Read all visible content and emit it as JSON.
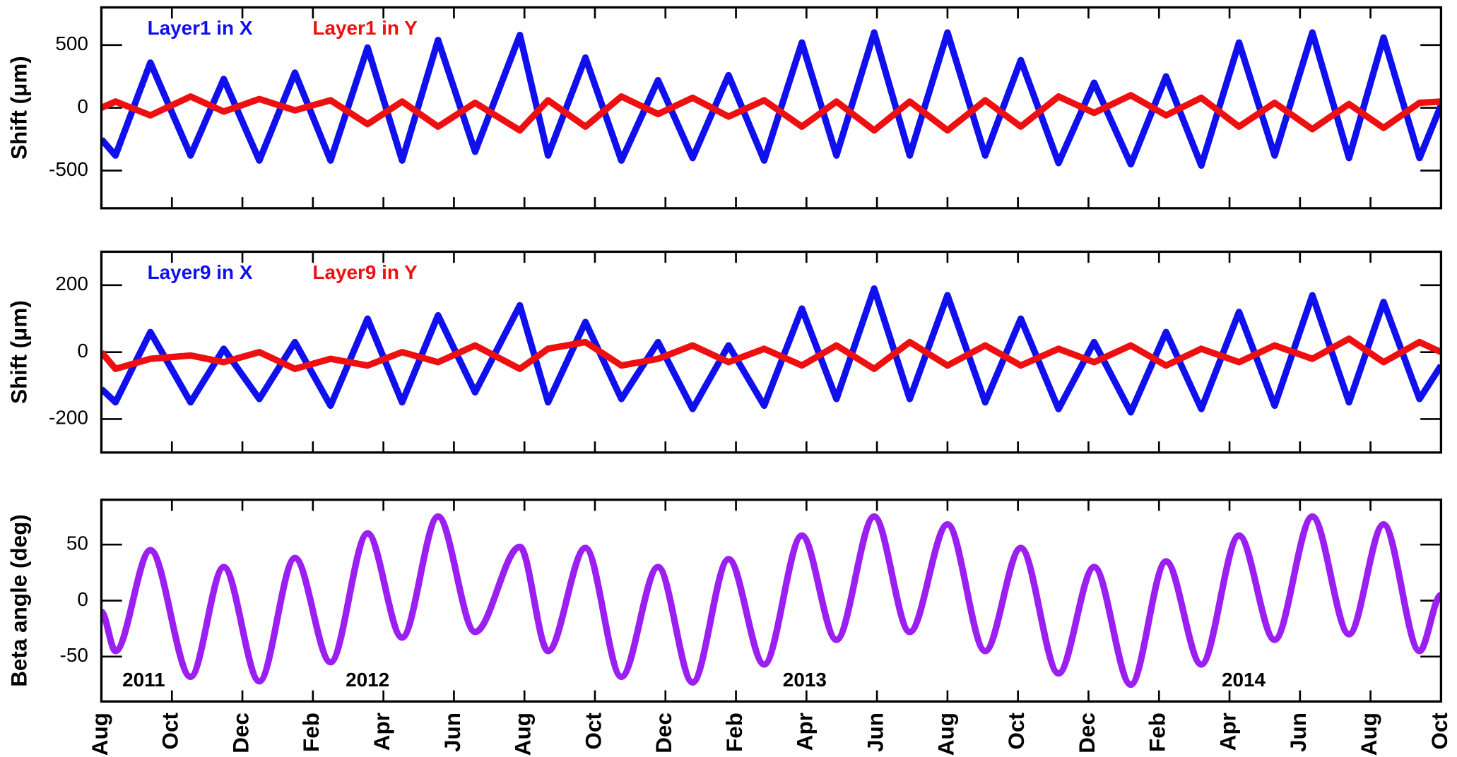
{
  "chart_data": [
    {
      "type": "line",
      "ylabel": "Shift (μm)",
      "x": [
        0,
        0.4,
        1.39,
        2.53,
        3.47,
        4.48,
        5.49,
        6.5,
        7.55,
        8.53,
        9.55,
        10.6,
        11.87,
        12.67,
        13.73,
        14.75,
        15.79,
        16.77,
        17.79,
        18.8,
        19.87,
        20.85,
        21.92,
        22.93,
        24,
        25.07,
        26.08,
        27.15,
        28.16,
        29.2,
        30.2,
        31.2,
        32.27,
        33.28,
        34.35,
        35.39,
        36.37,
        37.39,
        38
      ],
      "series": [
        {
          "name": "Layer1 in X",
          "color": "#1010ee",
          "values": [
            -250,
            -380,
            360,
            -380,
            230,
            -420,
            280,
            -420,
            480,
            -420,
            540,
            -350,
            580,
            -380,
            400,
            -420,
            220,
            -400,
            260,
            -420,
            520,
            -380,
            600,
            -380,
            600,
            -380,
            380,
            -440,
            200,
            -450,
            250,
            -460,
            520,
            -380,
            600,
            -400,
            560,
            -400,
            20
          ]
        },
        {
          "name": "Layer1 in Y",
          "color": "#ee1010",
          "values": [
            0,
            50,
            -60,
            90,
            -30,
            70,
            -20,
            60,
            -130,
            50,
            -150,
            40,
            -180,
            60,
            -150,
            90,
            -50,
            80,
            -70,
            60,
            -150,
            50,
            -180,
            50,
            -180,
            60,
            -150,
            90,
            -40,
            100,
            -60,
            80,
            -150,
            40,
            -170,
            30,
            -160,
            40,
            50
          ]
        }
      ],
      "xlim": [
        0,
        38
      ],
      "ylim": [
        -800,
        800
      ],
      "yticks": [
        -500,
        0,
        500
      ]
    },
    {
      "type": "line",
      "ylabel": "Shift (μm)",
      "x": [
        0,
        0.4,
        1.39,
        2.53,
        3.47,
        4.48,
        5.49,
        6.5,
        7.55,
        8.53,
        9.55,
        10.6,
        11.87,
        12.67,
        13.73,
        14.75,
        15.79,
        16.77,
        17.79,
        18.8,
        19.87,
        20.85,
        21.92,
        22.93,
        24,
        25.07,
        26.08,
        27.15,
        28.16,
        29.2,
        30.2,
        31.2,
        32.27,
        33.28,
        34.35,
        35.39,
        36.37,
        37.39,
        38
      ],
      "series": [
        {
          "name": "Layer9 in X",
          "color": "#1010ee",
          "values": [
            -110,
            -150,
            60,
            -150,
            10,
            -140,
            30,
            -160,
            100,
            -150,
            110,
            -120,
            140,
            -150,
            90,
            -140,
            30,
            -170,
            20,
            -160,
            130,
            -140,
            190,
            -140,
            170,
            -150,
            100,
            -170,
            30,
            -180,
            60,
            -170,
            120,
            -160,
            170,
            -150,
            150,
            -140,
            -40
          ]
        },
        {
          "name": "Layer9 in Y",
          "color": "#ee1010",
          "values": [
            0,
            -50,
            -20,
            -10,
            -30,
            0,
            -50,
            -20,
            -40,
            0,
            -30,
            20,
            -50,
            10,
            30,
            -40,
            -20,
            20,
            -30,
            10,
            -40,
            20,
            -50,
            30,
            -40,
            20,
            -40,
            10,
            -30,
            20,
            -40,
            10,
            -30,
            20,
            -20,
            40,
            -30,
            30,
            0
          ]
        }
      ],
      "xlim": [
        0,
        38
      ],
      "ylim": [
        -300,
        300
      ],
      "yticks": [
        -200,
        0,
        200
      ]
    },
    {
      "type": "line",
      "smooth": true,
      "ylabel": "Beta angle (deg)",
      "x": [
        0,
        0.4,
        1.39,
        2.53,
        3.47,
        4.48,
        5.49,
        6.5,
        7.55,
        8.53,
        9.55,
        10.6,
        11.87,
        12.67,
        13.73,
        14.75,
        15.79,
        16.77,
        17.79,
        18.8,
        19.87,
        20.85,
        21.92,
        22.93,
        24,
        25.07,
        26.08,
        27.15,
        28.16,
        29.2,
        30.2,
        31.2,
        32.27,
        33.28,
        34.35,
        35.39,
        36.37,
        37.39,
        38
      ],
      "series": [
        {
          "name": null,
          "color": "#9a1ff0",
          "values": [
            -10,
            -45,
            45,
            -68,
            30,
            -72,
            38,
            -55,
            60,
            -33,
            75,
            -28,
            48,
            -45,
            47,
            -68,
            30,
            -73,
            37,
            -57,
            58,
            -35,
            75,
            -28,
            68,
            -45,
            47,
            -65,
            30,
            -75,
            35,
            -57,
            58,
            -35,
            75,
            -30,
            68,
            -45,
            5
          ]
        }
      ],
      "xlim": [
        0,
        38
      ],
      "ylim": [
        -90,
        90
      ],
      "yticks": [
        -50,
        0,
        50
      ],
      "xticks": [
        {
          "value": 0,
          "label": "Aug"
        },
        {
          "value": 2,
          "label": "Oct"
        },
        {
          "value": 4,
          "label": "Dec"
        },
        {
          "value": 6,
          "label": "Feb"
        },
        {
          "value": 8,
          "label": "Apr"
        },
        {
          "value": 10,
          "label": "Jun"
        },
        {
          "value": 12,
          "label": "Aug"
        },
        {
          "value": 14,
          "label": "Oct"
        },
        {
          "value": 16,
          "label": "Dec"
        },
        {
          "value": 18,
          "label": "Feb"
        },
        {
          "value": 20,
          "label": "Apr"
        },
        {
          "value": 22,
          "label": "Jun"
        },
        {
          "value": 24,
          "label": "Aug"
        },
        {
          "value": 26,
          "label": "Oct"
        },
        {
          "value": 28,
          "label": "Dec"
        },
        {
          "value": 30,
          "label": "Feb"
        },
        {
          "value": 32,
          "label": "Apr"
        },
        {
          "value": 34,
          "label": "Jun"
        },
        {
          "value": 36,
          "label": "Aug"
        },
        {
          "value": 38,
          "label": "Oct"
        }
      ],
      "annotations": [
        {
          "text": "2011",
          "x": 1.2
        },
        {
          "text": "2012",
          "x": 7.55
        },
        {
          "text": "2013",
          "x": 19.95
        },
        {
          "text": "2014",
          "x": 32.4
        }
      ]
    }
  ]
}
